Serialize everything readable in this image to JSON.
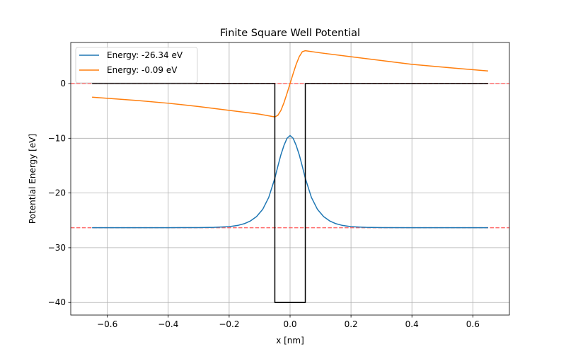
{
  "chart_data": {
    "type": "line",
    "title": "Finite Square Well Potential",
    "xlabel": "x [nm]",
    "ylabel": "Potential Energy [eV]",
    "xlim": [
      -0.72,
      0.72
    ],
    "ylim": [
      -42.3,
      7.5
    ],
    "grid": true,
    "legend_placement": "top-left",
    "x_ticks": [
      -0.6,
      -0.4,
      -0.2,
      0.0,
      0.2,
      0.4,
      0.6
    ],
    "x_tick_labels": [
      "−0.6",
      "−0.4",
      "−0.2",
      "0.0",
      "0.2",
      "0.4",
      "0.6"
    ],
    "y_ticks": [
      0,
      -10,
      -20,
      -30,
      -40
    ],
    "y_tick_labels": [
      "0",
      "−10",
      "−20",
      "−30",
      "−40"
    ],
    "series": [
      {
        "name": "Energy: -26.34 eV",
        "color": "#1f77b4",
        "x": [
          -0.65,
          -0.5,
          -0.4,
          -0.3,
          -0.25,
          -0.2,
          -0.17,
          -0.15,
          -0.13,
          -0.11,
          -0.09,
          -0.07,
          -0.05,
          -0.04,
          -0.03,
          -0.02,
          -0.01,
          0.0,
          0.01,
          0.02,
          0.03,
          0.04,
          0.05,
          0.07,
          0.09,
          0.11,
          0.13,
          0.15,
          0.17,
          0.2,
          0.25,
          0.3,
          0.4,
          0.5,
          0.65
        ],
        "y": [
          -26.34,
          -26.34,
          -26.34,
          -26.32,
          -26.28,
          -26.15,
          -25.9,
          -25.6,
          -25.1,
          -24.3,
          -23.0,
          -20.8,
          -17.3,
          -15.1,
          -13.0,
          -11.3,
          -10.0,
          -9.5,
          -10.0,
          -11.3,
          -13.0,
          -15.1,
          -17.3,
          -20.8,
          -23.0,
          -24.3,
          -25.1,
          -25.6,
          -25.9,
          -26.15,
          -26.28,
          -26.32,
          -26.34,
          -26.34,
          -26.34
        ]
      },
      {
        "name": "Energy: -0.09 eV",
        "color": "#ff7f0e",
        "x": [
          -0.65,
          -0.5,
          -0.4,
          -0.3,
          -0.2,
          -0.1,
          -0.05,
          -0.04,
          -0.03,
          -0.02,
          -0.01,
          0.0,
          0.01,
          0.02,
          0.03,
          0.04,
          0.05,
          0.1,
          0.2,
          0.3,
          0.4,
          0.5,
          0.65
        ],
        "y": [
          -2.5,
          -3.1,
          -3.6,
          -4.2,
          -4.9,
          -5.6,
          -6.1,
          -5.8,
          -4.9,
          -3.5,
          -1.8,
          0.0,
          1.8,
          3.5,
          4.9,
          5.8,
          6.0,
          5.6,
          4.9,
          4.2,
          3.5,
          3.0,
          2.3
        ]
      },
      {
        "name": "",
        "color": "#000000",
        "x": [
          -0.65,
          -0.05,
          -0.05,
          0.05,
          0.05,
          0.65
        ],
        "y": [
          0,
          0,
          -40,
          -40,
          0,
          0
        ]
      }
    ],
    "reference_lines": [
      {
        "y": 0,
        "color": "#ff6b6b",
        "style": "dashed"
      },
      {
        "y": -26.34,
        "color": "#ff6b6b",
        "style": "dashed"
      }
    ]
  }
}
